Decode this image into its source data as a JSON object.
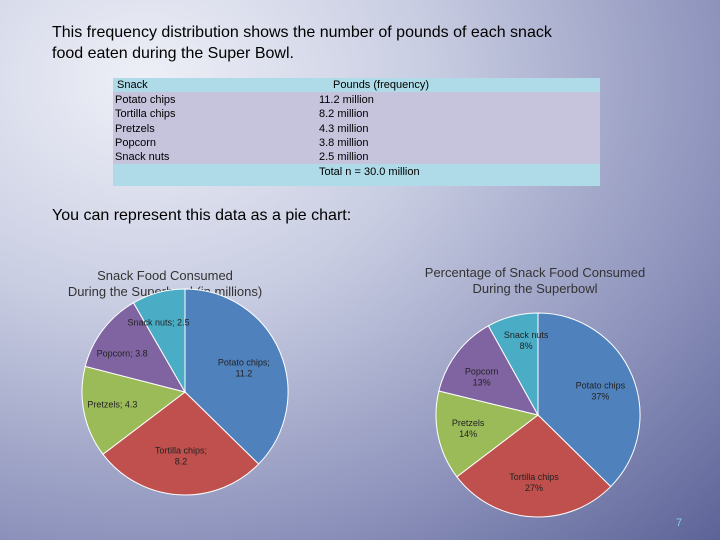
{
  "intro": {
    "line1": "This frequency distribution shows the number of pounds of each snack",
    "line2": "food eaten during the  Super Bowl."
  },
  "table": {
    "header": [
      "Snack",
      "Pounds (frequency)"
    ],
    "rows": [
      [
        "Potato chips",
        "11.2 million"
      ],
      [
        "Tortilla chips",
        "8.2 million"
      ],
      [
        "Pretzels",
        "4.3 million"
      ],
      [
        "Popcorn",
        "3.8 million"
      ],
      [
        "Snack nuts",
        "2.5 million"
      ]
    ],
    "total": "Total n = 30.0 million"
  },
  "subheading": "You can represent this data as a pie chart:",
  "page_number": "7",
  "colors": {
    "potato_chips": "#4f81bd",
    "tortilla_chips": "#c0504d",
    "pretzels": "#9bbb59",
    "popcorn": "#8064a2",
    "snack_nuts": "#4bacc6"
  },
  "chart_data": [
    {
      "type": "pie",
      "title_line1": "Snack Food Consumed",
      "title_line2": "During the Superbowl (in millions)",
      "categories": [
        "Potato chips",
        "Tortilla chips",
        "Pretzels",
        "Popcorn",
        "Snack nuts"
      ],
      "values": [
        11.2,
        8.2,
        4.3,
        3.8,
        2.5
      ],
      "labels": [
        "Potato chips; 11.2",
        "Tortilla chips; 8.2",
        "Pretzels; 4.3",
        "Popcorn; 3.8",
        "Snack nuts; 2.5"
      ]
    },
    {
      "type": "pie",
      "title_line1": "Percentage of Snack Food Consumed",
      "title_line2": "During the Superbowl",
      "categories": [
        "Potato chips",
        "Tortilla chips",
        "Pretzels",
        "Popcorn",
        "Snack nuts"
      ],
      "values": [
        37,
        27,
        14,
        13,
        8
      ],
      "labels": [
        "Potato chips 37%",
        "Tortilla chips 27%",
        "Pretzels 14%",
        "Popcorn 13%",
        "Snack nuts 8%"
      ]
    }
  ]
}
